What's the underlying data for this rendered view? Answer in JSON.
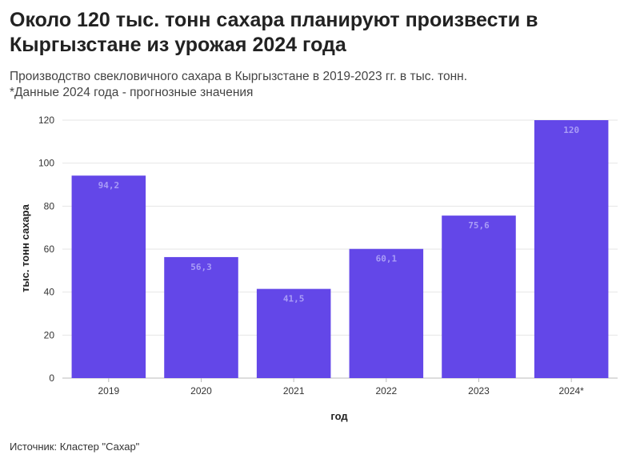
{
  "header": {
    "title": "Около 120 тыс. тонн сахара планируют произвести в Кыргызстане из урожая 2024 года",
    "subtitle_line1": "Производство свекловичного сахара в Кыргызстане в 2019-2023 гг. в тыс. тонн.",
    "subtitle_line2": "*Данные 2024 года - прогнозные значения"
  },
  "footer": {
    "source": "Источник: Кластер \"Сахар\""
  },
  "chart_data": {
    "type": "bar",
    "categories": [
      "2019",
      "2020",
      "2021",
      "2022",
      "2023",
      "2024*"
    ],
    "values": [
      94.2,
      56.3,
      41.5,
      60.1,
      75.6,
      120
    ],
    "value_labels": [
      "94,2",
      "56,3",
      "41,5",
      "60,1",
      "75,6",
      "120"
    ],
    "xlabel": "год",
    "ylabel": "тыс. тонн сахара",
    "ylim": [
      0,
      120
    ],
    "yticks": [
      0,
      20,
      40,
      60,
      80,
      100,
      120
    ],
    "grid": true,
    "bar_color": "#6347e8"
  }
}
